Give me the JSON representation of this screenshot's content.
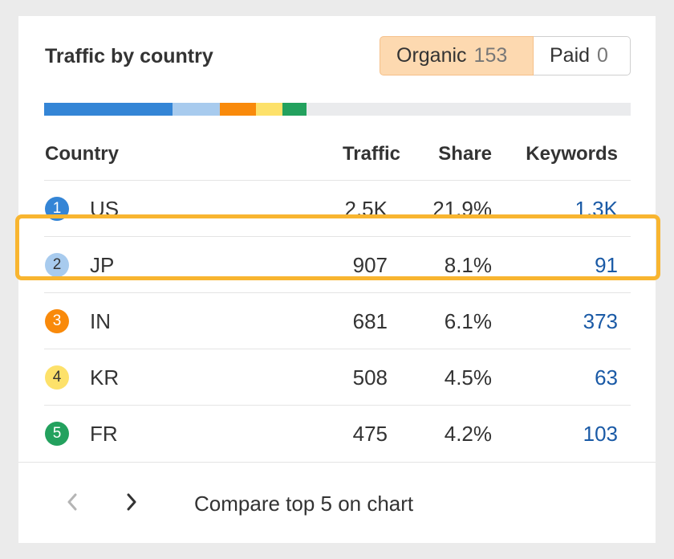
{
  "title": "Traffic by country",
  "toggle": {
    "organic_label": "Organic",
    "organic_count": "153",
    "paid_label": "Paid",
    "paid_count": "0"
  },
  "share_bar": [
    {
      "country": "US",
      "color": "#3485d6",
      "share": 21.9
    },
    {
      "country": "JP",
      "color": "#a8cbee",
      "share": 8.1
    },
    {
      "country": "IN",
      "color": "#f98a0b",
      "share": 6.1
    },
    {
      "country": "KR",
      "color": "#fde16a",
      "share": 4.5
    },
    {
      "country": "FR",
      "color": "#23a15e",
      "share": 4.2
    }
  ],
  "columns": {
    "country": "Country",
    "traffic": "Traffic",
    "share": "Share",
    "keywords": "Keywords"
  },
  "rows": [
    {
      "rank": "1",
      "country": "US",
      "traffic": "2.5K",
      "share": "21.9%",
      "keywords": "1.3K",
      "color": "#3485d6"
    },
    {
      "rank": "2",
      "country": "JP",
      "traffic": "907",
      "share": "8.1%",
      "keywords": "91",
      "color": "#a8cbee"
    },
    {
      "rank": "3",
      "country": "IN",
      "traffic": "681",
      "share": "6.1%",
      "keywords": "373",
      "color": "#f98a0b"
    },
    {
      "rank": "4",
      "country": "KR",
      "traffic": "508",
      "share": "4.5%",
      "keywords": "63",
      "color": "#fde16a"
    },
    {
      "rank": "5",
      "country": "FR",
      "traffic": "475",
      "share": "4.2%",
      "keywords": "103",
      "color": "#23a15e"
    }
  ],
  "highlighted_row": "JP",
  "footer": {
    "prev_icon": "chevron-left-icon",
    "next_icon": "chevron-right-icon",
    "compare_label": "Compare top 5 on chart"
  }
}
